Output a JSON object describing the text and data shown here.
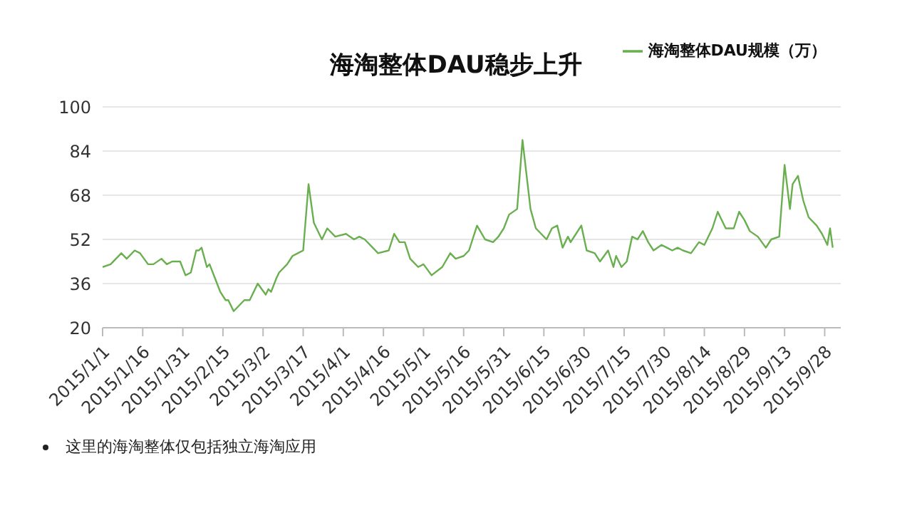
{
  "chart_data": {
    "type": "line",
    "title": "海淘整体DAU稳步上升",
    "annotations": [
      "这里的海淘整体仅包括独立海淘应用"
    ],
    "x": [
      "2015-01-01",
      "2015-01-04",
      "2015-01-06",
      "2015-01-08",
      "2015-01-10",
      "2015-01-13",
      "2015-01-15",
      "2015-01-18",
      "2015-01-20",
      "2015-01-23",
      "2015-01-25",
      "2015-01-27",
      "2015-01-30",
      "2015-02-01",
      "2015-02-03",
      "2015-02-05",
      "2015-02-06",
      "2015-02-07",
      "2015-02-09",
      "2015-02-10",
      "2015-02-12",
      "2015-02-14",
      "2015-02-16",
      "2015-02-17",
      "2015-02-19",
      "2015-02-21",
      "2015-02-23",
      "2015-02-25",
      "2015-02-27",
      "2015-02-28",
      "2015-03-03",
      "2015-03-04",
      "2015-03-05",
      "2015-03-07",
      "2015-03-08",
      "2015-03-11",
      "2015-03-13",
      "2015-03-15",
      "2015-03-17",
      "2015-03-19",
      "2015-03-21",
      "2015-03-24",
      "2015-03-26",
      "2015-03-29",
      "2015-04-02",
      "2015-04-05",
      "2015-04-07",
      "2015-04-09",
      "2015-04-14",
      "2015-04-18",
      "2015-04-20",
      "2015-04-22",
      "2015-04-24",
      "2015-04-26",
      "2015-04-29",
      "2015-05-01",
      "2015-05-04",
      "2015-05-08",
      "2015-05-11",
      "2015-05-13",
      "2015-05-16",
      "2015-05-18",
      "2015-05-21",
      "2015-05-24",
      "2015-05-27",
      "2015-05-29",
      "2015-05-31",
      "2015-06-02",
      "2015-06-05",
      "2015-06-07",
      "2015-06-10",
      "2015-06-12",
      "2015-06-14",
      "2015-06-16",
      "2015-06-18",
      "2015-06-20",
      "2015-06-22",
      "2015-06-24",
      "2015-06-25",
      "2015-06-27",
      "2015-06-29",
      "2015-07-01",
      "2015-07-04",
      "2015-07-06",
      "2015-07-09",
      "2015-07-11",
      "2015-07-12",
      "2015-07-14",
      "2015-07-16",
      "2015-07-18",
      "2015-07-20",
      "2015-07-22",
      "2015-07-24",
      "2015-07-26",
      "2015-07-29",
      "2015-07-31",
      "2015-08-02",
      "2015-08-04",
      "2015-08-06",
      "2015-08-09",
      "2015-08-12",
      "2015-08-14",
      "2015-08-17",
      "2015-08-19",
      "2015-08-22",
      "2015-08-25",
      "2015-08-27",
      "2015-08-29",
      "2015-08-31",
      "2015-09-03",
      "2015-09-06",
      "2015-09-08",
      "2015-09-11",
      "2015-09-13",
      "2015-09-15",
      "2015-09-16",
      "2015-09-18",
      "2015-09-20",
      "2015-09-22",
      "2015-09-25",
      "2015-09-27",
      "2015-09-29",
      "2015-09-30",
      "2015-10-01"
    ],
    "series": [
      {
        "name": "海淘整体DAU规模（万）",
        "color": "#6aaf4f",
        "values": [
          42,
          43,
          45,
          47,
          45,
          48,
          47,
          43,
          43,
          45,
          43,
          44,
          44,
          39,
          40,
          48,
          48,
          49,
          42,
          43,
          38,
          33,
          30,
          30,
          26,
          28,
          30,
          30,
          34,
          36,
          32,
          34,
          33,
          38,
          40,
          43,
          46,
          47,
          48,
          72,
          58,
          52,
          56,
          53,
          54,
          52,
          53,
          52,
          47,
          48,
          54,
          51,
          51,
          45,
          42,
          43,
          39,
          42,
          47,
          45,
          46,
          48,
          57,
          52,
          51,
          53,
          56,
          61,
          63,
          88,
          63,
          56,
          54,
          52,
          56,
          57,
          49,
          53,
          51,
          54,
          57,
          48,
          47,
          44,
          48,
          42,
          46,
          42,
          44,
          53,
          52,
          55,
          51,
          48,
          50,
          49,
          48,
          49,
          48,
          47,
          51,
          50,
          56,
          62,
          56,
          56,
          62,
          59,
          55,
          53,
          49,
          52,
          53,
          79,
          63,
          72,
          75,
          66,
          60,
          57,
          54,
          50,
          56,
          49
        ]
      }
    ],
    "xlim": [
      "2015-01-01",
      "2015-10-04"
    ],
    "xticks": [
      {
        "value": "2015-01-01",
        "label": "2015/1/1"
      },
      {
        "value": "2015-01-16",
        "label": "2015/1/16"
      },
      {
        "value": "2015-01-31",
        "label": "2015/1/31"
      },
      {
        "value": "2015-02-15",
        "label": "2015/2/15"
      },
      {
        "value": "2015-03-02",
        "label": "2015/3/2"
      },
      {
        "value": "2015-03-17",
        "label": "2015/3/17"
      },
      {
        "value": "2015-04-01",
        "label": "2015/4/1"
      },
      {
        "value": "2015-04-16",
        "label": "2015/4/16"
      },
      {
        "value": "2015-05-01",
        "label": "2015/5/1"
      },
      {
        "value": "2015-05-16",
        "label": "2015/5/16"
      },
      {
        "value": "2015-05-31",
        "label": "2015/5/31"
      },
      {
        "value": "2015-06-15",
        "label": "2015/6/15"
      },
      {
        "value": "2015-06-30",
        "label": "2015/6/30"
      },
      {
        "value": "2015-07-15",
        "label": "2015/7/15"
      },
      {
        "value": "2015-07-30",
        "label": "2015/7/30"
      },
      {
        "value": "2015-08-14",
        "label": "2015/8/14"
      },
      {
        "value": "2015-08-29",
        "label": "2015/8/29"
      },
      {
        "value": "2015-09-13",
        "label": "2015/9/13"
      },
      {
        "value": "2015-09-28",
        "label": "2015/9/28"
      }
    ],
    "ylim": [
      20,
      100
    ],
    "yticks": [
      20,
      36,
      52,
      68,
      84,
      100
    ],
    "grid": "y",
    "legend": "top right",
    "marker": "none",
    "line_style": "solid"
  }
}
